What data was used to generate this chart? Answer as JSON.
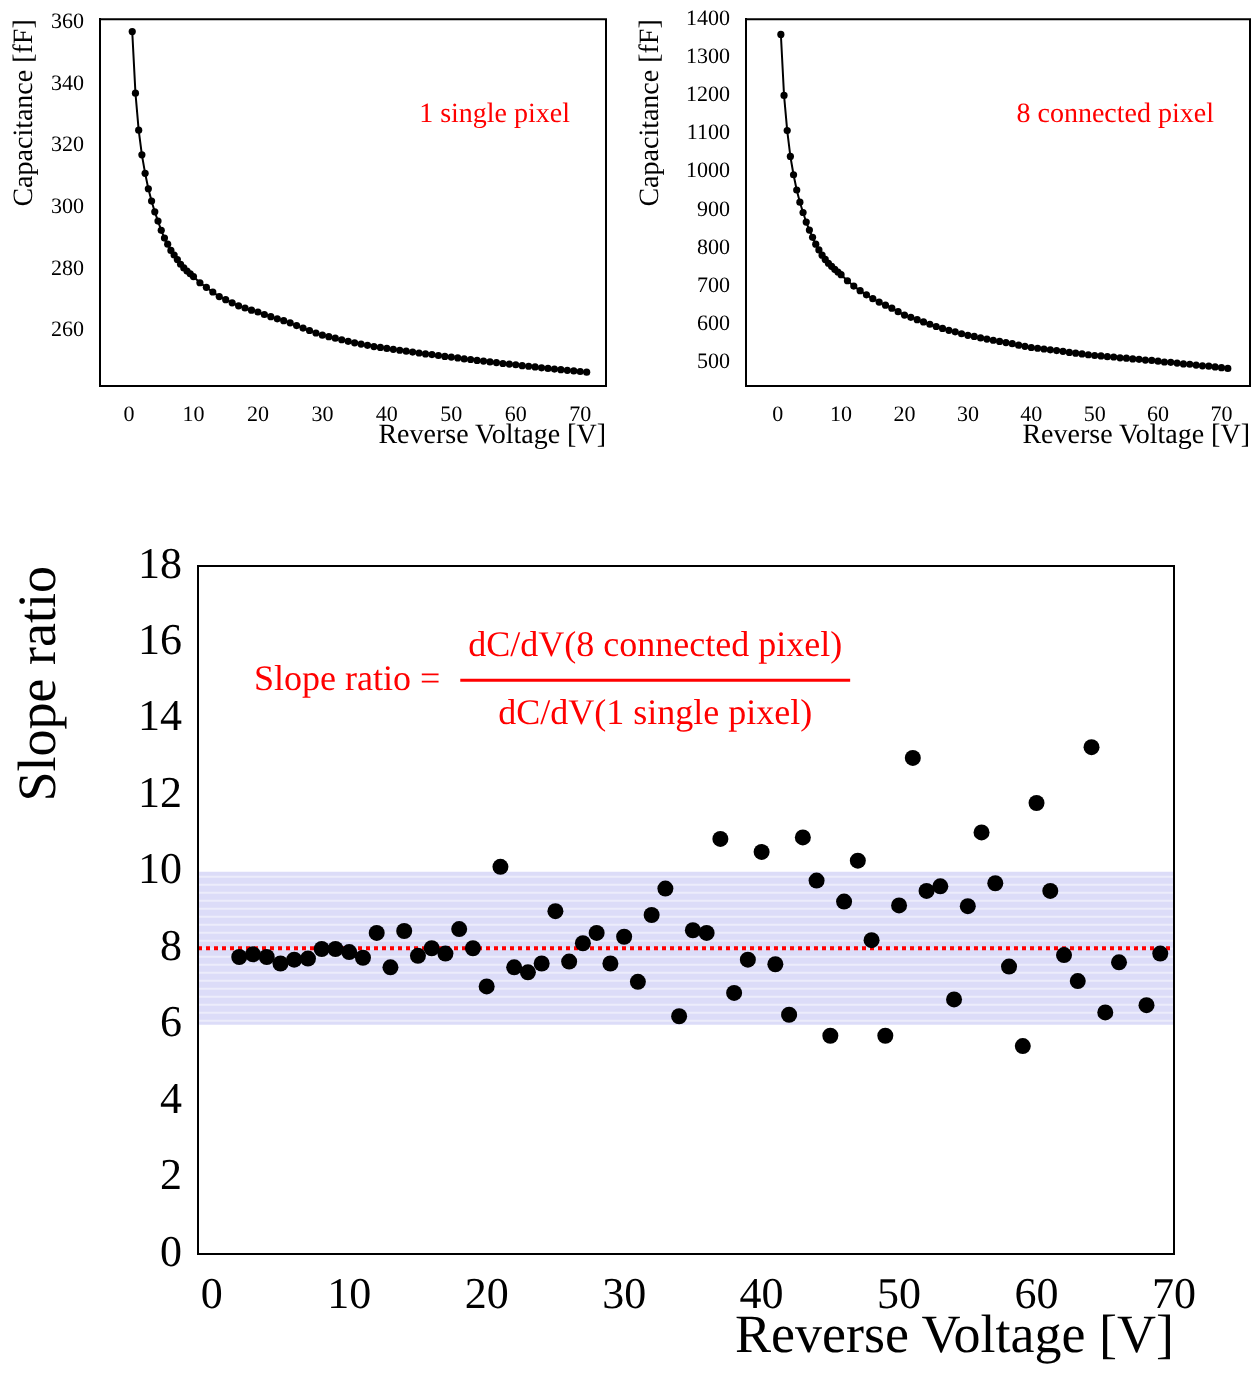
{
  "chart_data": [
    {
      "type": "line",
      "xlabel": "Reverse Voltage [V]",
      "ylabel": "Capacitance [fF]",
      "annotations": [
        "1 single pixel"
      ],
      "marker": "circle",
      "grid": false,
      "xlim": [
        -4.5,
        74
      ],
      "ylim": [
        242,
        361
      ],
      "xticks": [
        0,
        10,
        20,
        30,
        40,
        50,
        60,
        70
      ],
      "yticks": [
        260,
        280,
        300,
        320,
        340,
        360
      ],
      "series": [
        {
          "color": "#000000",
          "x": [
            0.5,
            1,
            1.5,
            2,
            2.5,
            3,
            3.5,
            4,
            4.5,
            5,
            5.5,
            6,
            6.5,
            7,
            7.5,
            8,
            8.5,
            9,
            9.5,
            10,
            11,
            12,
            13,
            14,
            15,
            16,
            17,
            18,
            19,
            20,
            21,
            22,
            23,
            24,
            25,
            26,
            27,
            28,
            29,
            30,
            31,
            32,
            33,
            34,
            35,
            36,
            37,
            38,
            39,
            40,
            41,
            42,
            43,
            44,
            45,
            46,
            47,
            48,
            49,
            50,
            51,
            52,
            53,
            54,
            55,
            56,
            57,
            58,
            59,
            60,
            61,
            62,
            63,
            64,
            65,
            66,
            67,
            68,
            69,
            70,
            71
          ],
          "values": [
            357,
            337,
            325,
            317,
            311,
            306,
            302,
            298.5,
            295.5,
            292.5,
            290,
            288,
            286,
            284.5,
            283,
            281.5,
            280.3,
            279.3,
            278.4,
            277.5,
            275.5,
            274,
            272.5,
            271,
            270,
            269,
            268,
            267.3,
            266.6,
            266,
            265.2,
            264.5,
            263.8,
            263.2,
            262.5,
            261.6,
            260.8,
            260,
            259.2,
            258.5,
            258,
            257.5,
            257,
            256.5,
            256,
            255.6,
            255.2,
            254.8,
            254.5,
            254.2,
            253.9,
            253.6,
            253.3,
            253,
            252.7,
            252.4,
            252.2,
            251.9,
            251.6,
            251.4,
            251.1,
            250.8,
            250.6,
            250.3,
            250.1,
            249.8,
            249.6,
            249.3,
            249.1,
            248.9,
            248.6,
            248.4,
            248.2,
            247.9,
            247.7,
            247.5,
            247.3,
            247.1,
            246.9,
            246.7,
            246.5
          ]
        }
      ]
    },
    {
      "type": "line",
      "xlabel": "Reverse Voltage [V]",
      "ylabel": "Capacitance [fF]",
      "annotations": [
        "8 connected pixel"
      ],
      "marker": "circle",
      "grid": false,
      "xlim": [
        -5,
        74.5
      ],
      "ylim": [
        438,
        1400
      ],
      "xticks": [
        0,
        10,
        20,
        30,
        40,
        50,
        60,
        70
      ],
      "yticks": [
        500,
        600,
        700,
        800,
        900,
        1000,
        1100,
        1200,
        1300,
        1400
      ],
      "series": [
        {
          "color": "#000000",
          "x": [
            0.5,
            1,
            1.5,
            2,
            2.5,
            3,
            3.5,
            4,
            4.5,
            5,
            5.5,
            6,
            6.5,
            7,
            7.5,
            8,
            8.5,
            9,
            9.5,
            10,
            11,
            12,
            13,
            14,
            15,
            16,
            17,
            18,
            19,
            20,
            21,
            22,
            23,
            24,
            25,
            26,
            27,
            28,
            29,
            30,
            31,
            32,
            33,
            34,
            35,
            36,
            37,
            38,
            39,
            40,
            41,
            42,
            43,
            44,
            45,
            46,
            47,
            48,
            49,
            50,
            51,
            52,
            53,
            54,
            55,
            56,
            57,
            58,
            59,
            60,
            61,
            62,
            63,
            64,
            65,
            66,
            67,
            68,
            69,
            70,
            71
          ],
          "values": [
            1360,
            1200,
            1108,
            1040,
            992,
            952,
            920,
            893,
            868,
            847,
            828,
            810,
            795,
            781,
            770,
            760,
            752,
            744,
            737,
            730,
            714,
            700,
            688,
            677,
            667,
            658,
            650,
            642,
            633,
            624,
            618,
            612,
            606,
            600,
            594,
            589,
            584,
            580,
            575,
            571,
            568,
            564,
            561,
            558,
            555,
            552,
            549,
            545,
            542,
            539,
            537,
            535,
            533,
            531,
            529,
            526,
            524,
            522,
            520,
            518,
            517,
            515,
            514,
            512,
            511,
            509,
            508,
            506,
            505,
            503,
            501,
            500,
            498,
            496,
            495,
            493,
            491,
            490,
            488,
            486,
            484
          ]
        }
      ]
    },
    {
      "type": "scatter",
      "xlabel": "Reverse Voltage [V]",
      "ylabel": "Slope ratio",
      "annotations": [
        "Slope ratio =",
        "dC/dV(8 connected pixel)",
        "dC/dV(1 single pixel)"
      ],
      "marker": "circle",
      "grid": false,
      "xlim": [
        -1,
        70
      ],
      "ylim": [
        0,
        18
      ],
      "xticks": [
        0,
        10,
        20,
        30,
        40,
        50,
        60,
        70
      ],
      "yticks": [
        0,
        2,
        4,
        6,
        8,
        10,
        12,
        14,
        16,
        18
      ],
      "ref_lines": [
        {
          "axis": "y",
          "value": 8,
          "color": "#ff0000",
          "line_style": "dotted"
        }
      ],
      "bands": [
        {
          "axis": "y",
          "from": 6,
          "to": 10,
          "color": "#dcdcf8"
        }
      ],
      "series": [
        {
          "color": "#000000",
          "x": [
            2,
            3,
            4,
            5,
            6,
            7,
            8,
            9,
            10,
            11,
            12,
            13,
            14,
            15,
            16,
            17,
            18,
            19,
            20,
            21,
            22,
            23,
            24,
            25,
            26,
            27,
            28,
            29,
            30,
            31,
            32,
            33,
            34,
            35,
            36,
            37,
            38,
            39,
            40,
            41,
            42,
            43,
            44,
            45,
            46,
            47,
            48,
            49,
            50,
            51,
            52,
            53,
            54,
            55,
            56,
            57,
            58,
            59,
            60,
            61,
            62,
            63,
            64,
            65,
            66,
            68,
            69
          ],
          "values": [
            7.77,
            7.84,
            7.77,
            7.6,
            7.7,
            7.73,
            7.98,
            7.98,
            7.9,
            7.75,
            8.4,
            7.5,
            8.45,
            7.8,
            8.0,
            7.86,
            8.5,
            8.0,
            7.0,
            10.13,
            7.5,
            7.37,
            7.6,
            8.97,
            7.65,
            8.13,
            8.4,
            7.6,
            8.3,
            7.12,
            8.87,
            9.56,
            6.22,
            8.47,
            8.4,
            10.86,
            6.83,
            7.7,
            10.52,
            7.58,
            6.26,
            10.9,
            9.77,
            5.71,
            9.22,
            10.29,
            8.21,
            5.71,
            9.12,
            12.98,
            9.5,
            9.62,
            6.66,
            9.1,
            11.03,
            9.7,
            7.52,
            5.44,
            11.8,
            9.5,
            7.82,
            7.14,
            13.26,
            6.32,
            7.63,
            6.51,
            7.86
          ]
        }
      ]
    }
  ]
}
